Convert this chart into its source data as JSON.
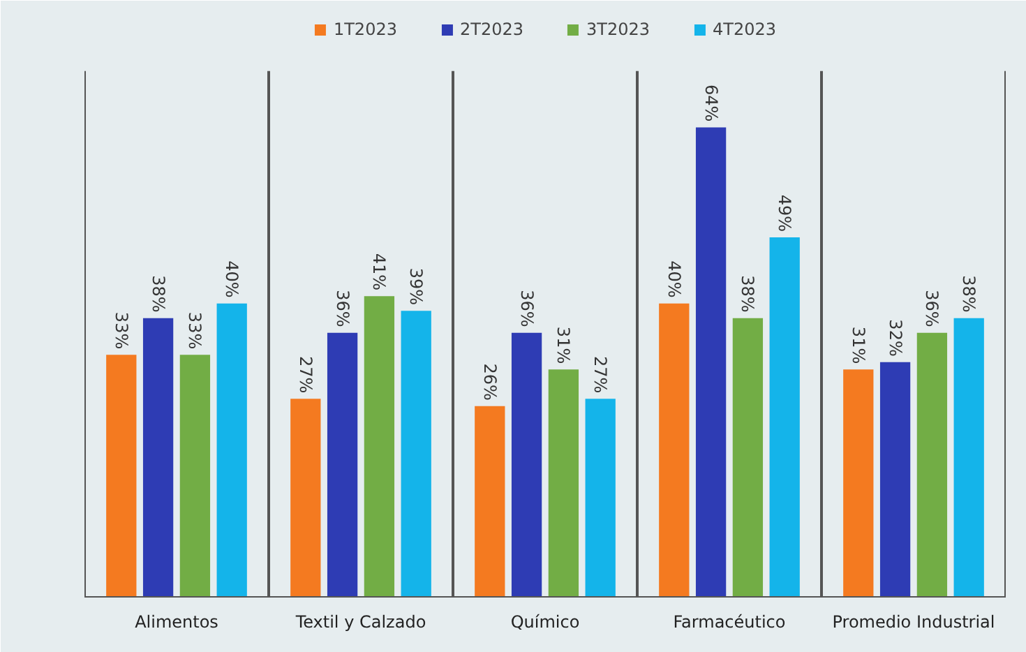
{
  "chart_data": {
    "type": "bar",
    "categories": [
      "Alimentos",
      "Textil y Calzado",
      "Químico",
      "Farmacéutico",
      "Promedio Industrial"
    ],
    "series": [
      {
        "name": "1T2023",
        "color": "#f47a20",
        "values": [
          33,
          27,
          26,
          40,
          31
        ],
        "value_labels": [
          "33%",
          "27%",
          "26%",
          "40%",
          "31%"
        ]
      },
      {
        "name": "2T2023",
        "color": "#2e3cb4",
        "values": [
          38,
          36,
          36,
          64,
          32
        ],
        "value_labels": [
          "38%",
          "36%",
          "36%",
          "64%",
          "32%"
        ]
      },
      {
        "name": "3T2023",
        "color": "#72ad45",
        "values": [
          33,
          41,
          31,
          38,
          36
        ],
        "value_labels": [
          "33%",
          "41%",
          "31%",
          "38%",
          "36%"
        ]
      },
      {
        "name": "4T2023",
        "color": "#14b4ea",
        "values": [
          40,
          39,
          27,
          49,
          38
        ],
        "value_labels": [
          "40%",
          "39%",
          "27%",
          "49%",
          "38%"
        ]
      }
    ],
    "grid": "x",
    "legend": "top"
  }
}
